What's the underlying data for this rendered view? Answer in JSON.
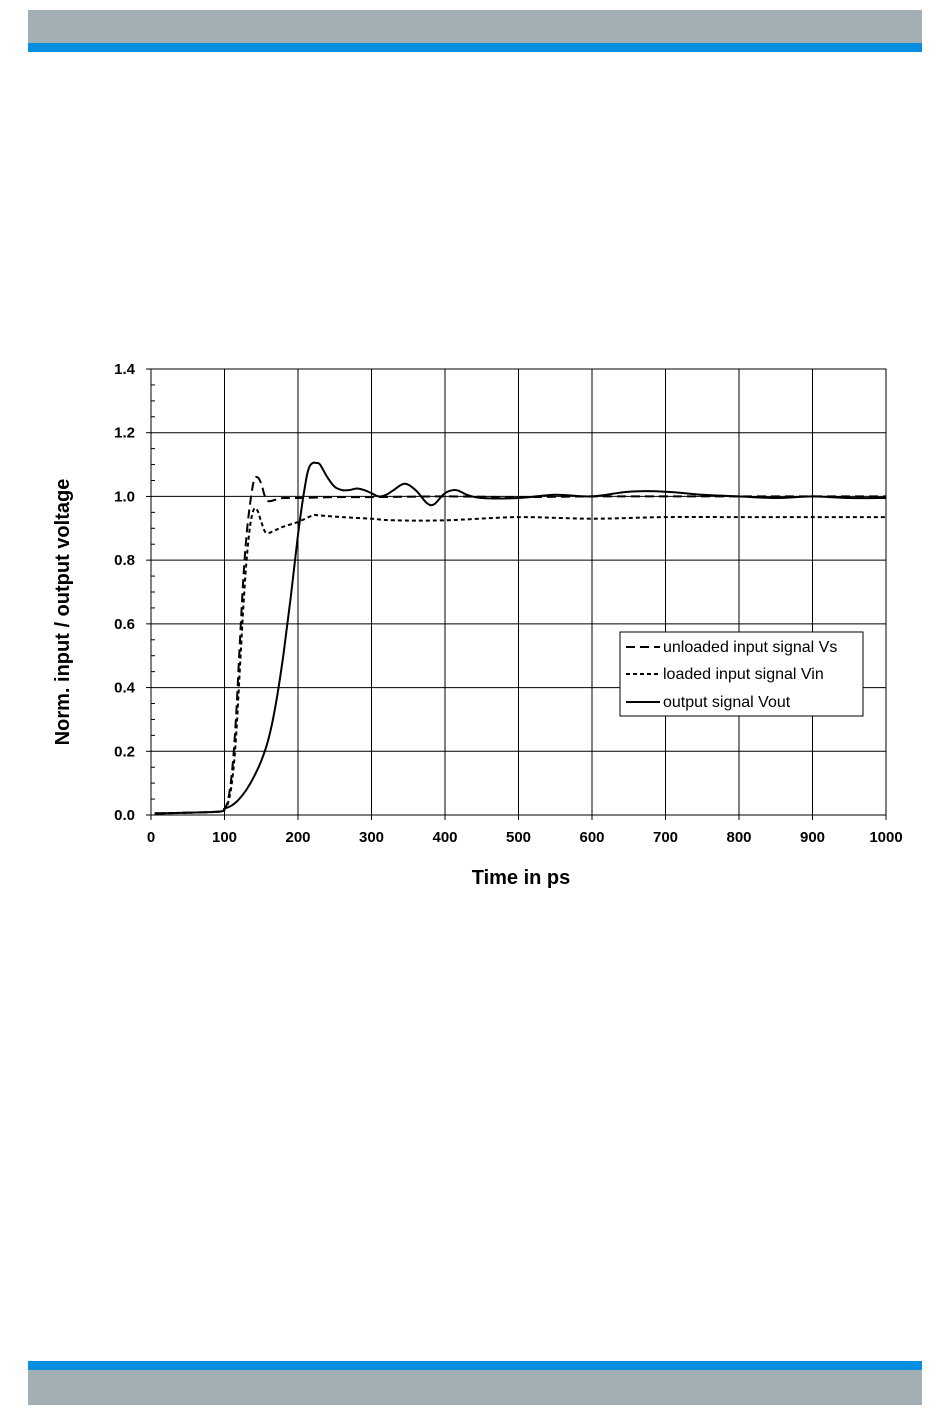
{
  "colors": {
    "band_grey": "#a3aeb5",
    "band_blue": "#0a8ee0",
    "line": "#000000"
  },
  "chart_data": {
    "type": "line",
    "title": "",
    "xlabel": "Time in ps",
    "ylabel": "Norm. input / output voltage",
    "xlim": [
      0,
      1000
    ],
    "ylim": [
      0,
      1.4
    ],
    "x_ticks": [
      "0",
      "100",
      "200",
      "300",
      "400",
      "500",
      "600",
      "700",
      "800",
      "900",
      "1000"
    ],
    "y_ticks": [
      "0.0",
      "0.2",
      "0.4",
      "0.6",
      "0.8",
      "1.0",
      "1.2",
      "1.4"
    ],
    "grid": true,
    "legend_position": "right",
    "series": [
      {
        "name": "unloaded input signal Vs",
        "style": "long-dash",
        "x": [
          5,
          90,
          100,
          105,
          110,
          115,
          120,
          125,
          130,
          135,
          140,
          145,
          150,
          155,
          160,
          170,
          180,
          200,
          250,
          300,
          400,
          500,
          600,
          700,
          800,
          900,
          1000
        ],
        "y": [
          0.005,
          0.01,
          0.02,
          0.05,
          0.13,
          0.28,
          0.5,
          0.72,
          0.88,
          0.98,
          1.05,
          1.06,
          1.04,
          1.0,
          0.985,
          0.99,
          0.995,
          0.995,
          0.998,
          0.998,
          1.0,
          0.998,
          1.0,
          1.0,
          1.0,
          1.0,
          1.0
        ]
      },
      {
        "name": "loaded input signal Vin",
        "style": "short-dash",
        "x": [
          5,
          90,
          100,
          105,
          110,
          115,
          120,
          125,
          130,
          135,
          140,
          145,
          150,
          155,
          160,
          170,
          180,
          200,
          220,
          230,
          260,
          300,
          330,
          400,
          500,
          600,
          700,
          800,
          900,
          1000
        ],
        "y": [
          0.005,
          0.01,
          0.02,
          0.04,
          0.1,
          0.22,
          0.42,
          0.63,
          0.8,
          0.91,
          0.96,
          0.955,
          0.92,
          0.89,
          0.885,
          0.895,
          0.905,
          0.92,
          0.94,
          0.94,
          0.935,
          0.93,
          0.925,
          0.925,
          0.935,
          0.93,
          0.935,
          0.935,
          0.935,
          0.935
        ]
      },
      {
        "name": "output signal Vout",
        "style": "solid",
        "x": [
          5,
          90,
          100,
          110,
          120,
          130,
          140,
          150,
          160,
          170,
          180,
          190,
          200,
          210,
          215,
          220,
          225,
          230,
          240,
          250,
          260,
          270,
          280,
          290,
          300,
          310,
          320,
          330,
          345,
          360,
          375,
          385,
          400,
          415,
          430,
          450,
          500,
          550,
          600,
          650,
          700,
          750,
          800,
          850,
          900,
          950,
          1000
        ],
        "y": [
          0.005,
          0.01,
          0.02,
          0.03,
          0.05,
          0.08,
          0.12,
          0.17,
          0.24,
          0.35,
          0.5,
          0.68,
          0.88,
          1.04,
          1.09,
          1.105,
          1.105,
          1.1,
          1.06,
          1.03,
          1.02,
          1.02,
          1.025,
          1.02,
          1.01,
          1.0,
          1.005,
          1.02,
          1.04,
          1.02,
          0.98,
          0.975,
          1.01,
          1.02,
          1.005,
          0.995,
          0.995,
          1.005,
          1.0,
          1.015,
          1.015,
          1.005,
          1.0,
          0.995,
          1.0,
          0.995,
          0.995
        ]
      }
    ]
  }
}
